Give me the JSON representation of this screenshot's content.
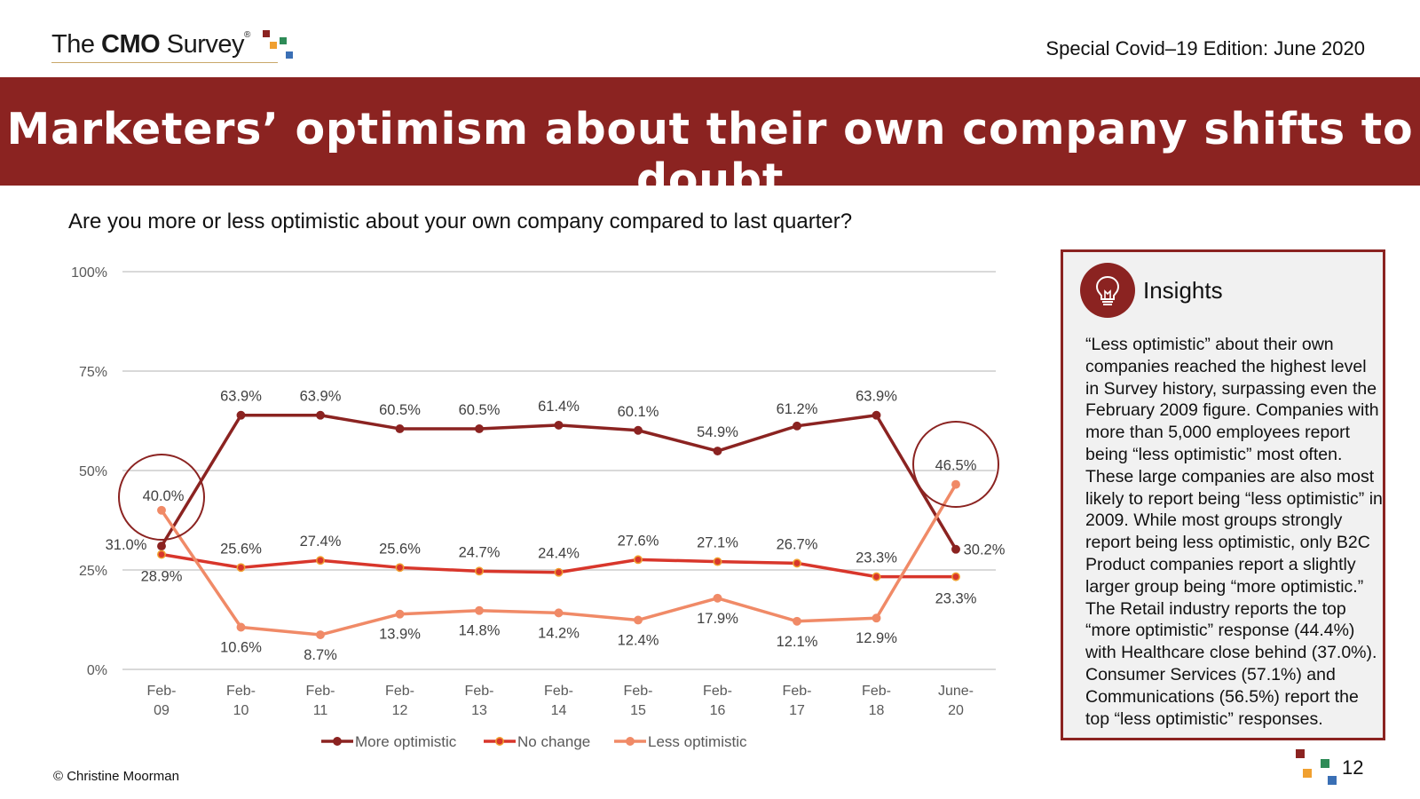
{
  "header": {
    "logo_text_pre": "The ",
    "logo_text_bold": "CMO",
    "logo_text_post": " Survey",
    "logo_reg": "®",
    "edition": "Special Covid–19 Edition: June 2020"
  },
  "banner": {
    "title": "Marketers’ optimism about their own company shifts to doubt"
  },
  "question": "Are you more or less optimistic about your own company compared to last quarter?",
  "colors": {
    "brand": "#8b2321",
    "more_optimistic": "#8b2321",
    "no_change": "#d8362b",
    "less_optimistic": "#f08a67",
    "gridline": "#d9d9d9",
    "logo_squares": [
      "#8b2321",
      "#f0a030",
      "#2e8b57",
      "#3a6fb5"
    ]
  },
  "chart_data": {
    "type": "line",
    "title": "",
    "xlabel": "",
    "ylabel": "",
    "ylim": [
      0,
      100
    ],
    "yticks": [
      "0%",
      "25%",
      "50%",
      "75%",
      "100%"
    ],
    "categories": [
      [
        "Feb-",
        "09"
      ],
      [
        "Feb-",
        "10"
      ],
      [
        "Feb-",
        "11"
      ],
      [
        "Feb-",
        "12"
      ],
      [
        "Feb-",
        "13"
      ],
      [
        "Feb-",
        "14"
      ],
      [
        "Feb-",
        "15"
      ],
      [
        "Feb-",
        "16"
      ],
      [
        "Feb-",
        "17"
      ],
      [
        "Feb-",
        "18"
      ],
      [
        "June-",
        "20"
      ]
    ],
    "series": [
      {
        "name": "More optimistic",
        "key": "more",
        "values": [
          31.0,
          63.9,
          63.9,
          60.5,
          60.5,
          61.4,
          60.1,
          54.9,
          61.2,
          63.9,
          30.2
        ],
        "labels": [
          "31.0%",
          "63.9%",
          "63.9%",
          "60.5%",
          "60.5%",
          "61.4%",
          "60.1%",
          "54.9%",
          "61.2%",
          "63.9%",
          "30.2%"
        ]
      },
      {
        "name": "No change",
        "key": "nochange",
        "values": [
          28.9,
          25.6,
          27.4,
          25.6,
          24.7,
          24.4,
          27.6,
          27.1,
          26.7,
          23.3,
          23.3
        ],
        "labels": [
          "28.9%",
          "25.6%",
          "27.4%",
          "25.6%",
          "24.7%",
          "24.4%",
          "27.6%",
          "27.1%",
          "26.7%",
          "23.3%",
          "23.3%"
        ]
      },
      {
        "name": "Less optimistic",
        "key": "less",
        "values": [
          40.0,
          10.6,
          8.7,
          13.9,
          14.8,
          14.2,
          12.4,
          17.9,
          12.1,
          12.9,
          46.5
        ],
        "labels": [
          "40.0%",
          "10.6%",
          "8.7%",
          "13.9%",
          "14.8%",
          "14.2%",
          "12.4%",
          "17.9%",
          "12.1%",
          "12.9%",
          "46.5%"
        ]
      }
    ],
    "legend": [
      "More optimistic",
      "No change",
      "Less optimistic"
    ],
    "legend_position": "bottom",
    "grid": true,
    "highlight_circles": [
      "Feb-09",
      "June-20"
    ]
  },
  "insights": {
    "title": "Insights",
    "icon": "lightbulb-icon",
    "text": "“Less optimistic” about their own companies reached the highest level in Survey history, surpassing even the February 2009 figure. Companies with more than 5,000 employees report being “less optimistic” most often. These large companies are also most likely to report being “less optimistic” in 2009. While most groups strongly report being less optimistic, only B2C Product companies report a slightly larger group being “more optimistic.” The Retail industry reports the top “more optimistic” response (44.4%) with Healthcare close behind (37.0%). Consumer Services (57.1%) and Communications (56.5%) report the top “less optimistic” responses."
  },
  "footer": {
    "copyright": "© Christine Moorman",
    "page_number": "12"
  }
}
